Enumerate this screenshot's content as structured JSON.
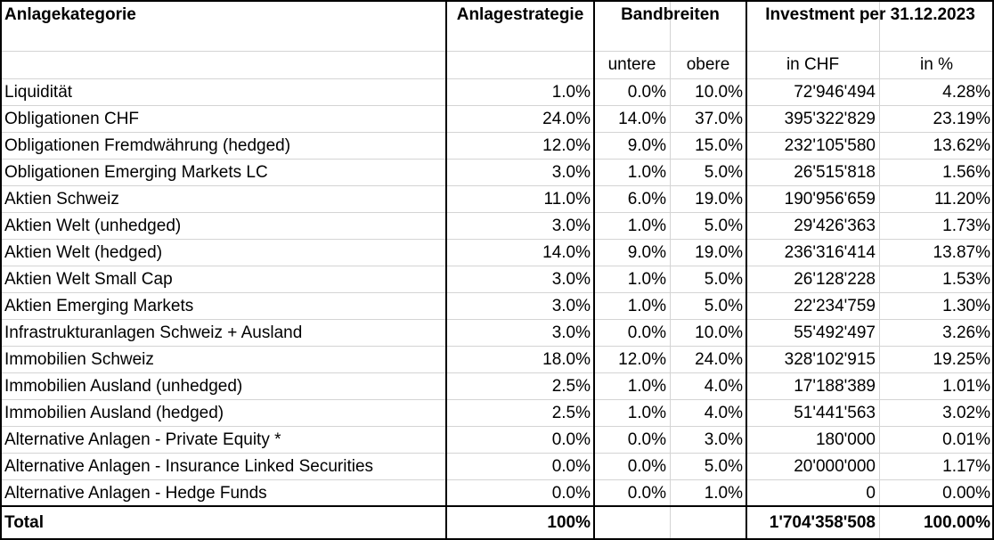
{
  "header": {
    "col_category": "Anlagekategorie",
    "col_strategy": "Anlagestrategie",
    "col_bandwidths": "Bandbreiten",
    "col_investment": "Investment per 31.12.2023",
    "sub_lower": "untere",
    "sub_upper": "obere",
    "sub_chf": "in CHF",
    "sub_pct": "in %"
  },
  "rows": [
    {
      "category": "Liquidität",
      "strategy": "1.0%",
      "lower": "0.0%",
      "upper": "10.0%",
      "chf": "72'946'494",
      "pct": "4.28%"
    },
    {
      "category": "Obligationen CHF",
      "strategy": "24.0%",
      "lower": "14.0%",
      "upper": "37.0%",
      "chf": "395'322'829",
      "pct": "23.19%"
    },
    {
      "category": "Obligationen Fremdwährung (hedged)",
      "strategy": "12.0%",
      "lower": "9.0%",
      "upper": "15.0%",
      "chf": "232'105'580",
      "pct": "13.62%"
    },
    {
      "category": "Obligationen Emerging Markets LC",
      "strategy": "3.0%",
      "lower": "1.0%",
      "upper": "5.0%",
      "chf": "26'515'818",
      "pct": "1.56%"
    },
    {
      "category": "Aktien Schweiz",
      "strategy": "11.0%",
      "lower": "6.0%",
      "upper": "19.0%",
      "chf": "190'956'659",
      "pct": "11.20%"
    },
    {
      "category": "Aktien Welt (unhedged)",
      "strategy": "3.0%",
      "lower": "1.0%",
      "upper": "5.0%",
      "chf": "29'426'363",
      "pct": "1.73%"
    },
    {
      "category": "Aktien Welt (hedged)",
      "strategy": "14.0%",
      "lower": "9.0%",
      "upper": "19.0%",
      "chf": "236'316'414",
      "pct": "13.87%"
    },
    {
      "category": "Aktien Welt Small Cap",
      "strategy": "3.0%",
      "lower": "1.0%",
      "upper": "5.0%",
      "chf": "26'128'228",
      "pct": "1.53%"
    },
    {
      "category": "Aktien Emerging Markets",
      "strategy": "3.0%",
      "lower": "1.0%",
      "upper": "5.0%",
      "chf": "22'234'759",
      "pct": "1.30%"
    },
    {
      "category": "Infrastrukturanlagen Schweiz + Ausland",
      "strategy": "3.0%",
      "lower": "0.0%",
      "upper": "10.0%",
      "chf": "55'492'497",
      "pct": "3.26%"
    },
    {
      "category": "Immobilien Schweiz",
      "strategy": "18.0%",
      "lower": "12.0%",
      "upper": "24.0%",
      "chf": "328'102'915",
      "pct": "19.25%"
    },
    {
      "category": "Immobilien Ausland (unhedged)",
      "strategy": "2.5%",
      "lower": "1.0%",
      "upper": "4.0%",
      "chf": "17'188'389",
      "pct": "1.01%"
    },
    {
      "category": "Immobilien Ausland (hedged)",
      "strategy": "2.5%",
      "lower": "1.0%",
      "upper": "4.0%",
      "chf": "51'441'563",
      "pct": "3.02%"
    },
    {
      "category": "Alternative Anlagen - Private Equity *",
      "strategy": "0.0%",
      "lower": "0.0%",
      "upper": "3.0%",
      "chf": "180'000",
      "pct": "0.01%"
    },
    {
      "category": "Alternative Anlagen - Insurance Linked Securities",
      "strategy": "0.0%",
      "lower": "0.0%",
      "upper": "5.0%",
      "chf": "20'000'000",
      "pct": "1.17%"
    },
    {
      "category": "Alternative Anlagen - Hedge Funds",
      "strategy": "0.0%",
      "lower": "0.0%",
      "upper": "1.0%",
      "chf": "0",
      "pct": "0.00%"
    }
  ],
  "total": {
    "label": "Total",
    "strategy": "100%",
    "chf": "1'704'358'508",
    "pct": "100.00%"
  }
}
